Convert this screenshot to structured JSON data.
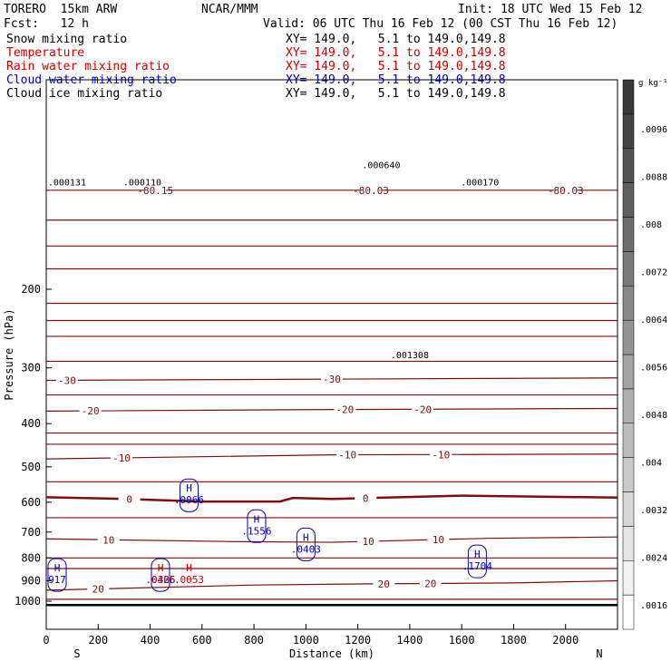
{
  "header": {
    "model": "TORERO  15km ARW",
    "org": "NCAR/MMM",
    "init": "Init: 18 UTC Wed 15 Feb 12",
    "fcst": "Fcst:   12 h",
    "valid": "Valid: 06 UTC Thu 16 Feb 12 (00 CST Thu 16 Feb 12)"
  },
  "fields": [
    {
      "name": "Snow mixing ratio",
      "xy": "XY= 149.0,   5.1 to 149.0,149.8",
      "color": "#000000"
    },
    {
      "name": "Temperature",
      "xy": "XY= 149.0,   5.1 to 149.0,149.8",
      "color": "#cc0000"
    },
    {
      "name": "Rain water mixing ratio",
      "xy": "XY= 149.0,   5.1 to 149.0,149.8",
      "color": "#cc0000"
    },
    {
      "name": "Cloud water mixing ratio",
      "xy": "XY= 149.0,   5.1 to 149.0,149.8",
      "color": "#0000bb"
    },
    {
      "name": "Cloud ice mixing ratio",
      "xy": "XY= 149.0,   5.1 to 149.0,149.8",
      "color": "#000000"
    }
  ],
  "colors": {
    "temperature": "#7a1010",
    "cloud_water": "#0000bb",
    "rain": "#cc0000",
    "ground": "#000000"
  },
  "chart_data": {
    "type": "contour",
    "xlabel": "Distance (km)",
    "ylabel": "Pressure (hPa)",
    "xlim": [
      0,
      2200
    ],
    "ylim": [
      1030,
      100
    ],
    "y_log_scale": true,
    "x_ticks": [
      0,
      200,
      400,
      600,
      800,
      1000,
      1200,
      1400,
      1600,
      1800,
      2000
    ],
    "x_tick_labels": [
      "0",
      "200",
      "400",
      "600",
      "800",
      "1000",
      "1200",
      "1400",
      "1600",
      "1800",
      "2000"
    ],
    "y_ticks": [
      200,
      300,
      400,
      500,
      600,
      700,
      800,
      900,
      1000
    ],
    "y_tick_labels": [
      "200",
      "300",
      "400",
      "500",
      "600",
      "700",
      "800",
      "900",
      "1000"
    ],
    "x_end_labels": {
      "left": "S",
      "right": "N"
    },
    "colorbar": {
      "unit": "g kg⁻¹",
      "ticks": [
        0.0016,
        0.0024,
        0.0032,
        0.004,
        0.0048,
        0.0056,
        0.0064,
        0.0072,
        0.008,
        0.0088,
        0.0096
      ],
      "tick_labels": [
        ".0016",
        ".0024",
        ".0032",
        ".004",
        ".0048",
        ".0056",
        ".0064",
        ".0072",
        ".008",
        ".0088",
        ".0096"
      ],
      "levels": 16
    },
    "temperature_contours": [
      {
        "label": "-80.15",
        "x": [
          0,
          2200
        ],
        "p": [
          120,
          120
        ],
        "labels_at": [
          {
            "x": 420,
            "text": "-80.15"
          },
          {
            "x": 2000,
            "text": "-80.03"
          },
          {
            "x": 1250,
            "text": "-80.03"
          }
        ]
      },
      {
        "level": -30,
        "label": "-30",
        "x": [
          0,
          1100,
          2200
        ],
        "p": [
          320,
          318,
          316
        ],
        "labels_at": [
          {
            "x": 80,
            "text": "-30"
          },
          {
            "x": 1100,
            "text": "-30"
          }
        ]
      },
      {
        "level": -20,
        "label": "-20",
        "x": [
          0,
          1100,
          2200
        ],
        "p": [
          375,
          372,
          370
        ],
        "labels_at": [
          {
            "x": 170,
            "text": "-20"
          },
          {
            "x": 1150,
            "text": "-20"
          },
          {
            "x": 1450,
            "text": "-20"
          }
        ]
      },
      {
        "level": -10,
        "label": "-10",
        "x": [
          0,
          1100,
          2200
        ],
        "p": [
          480,
          470,
          468
        ],
        "labels_at": [
          {
            "x": 290,
            "text": "-10"
          },
          {
            "x": 1160,
            "text": "-10"
          },
          {
            "x": 1520,
            "text": "-10"
          }
        ]
      },
      {
        "level": 0,
        "label": "0",
        "x": [
          0,
          300,
          600,
          900,
          950,
          1100,
          1600,
          2200
        ],
        "p": [
          585,
          590,
          598,
          598,
          587,
          590,
          580,
          586
        ],
        "labels_at": [
          {
            "x": 320,
            "text": "0"
          },
          {
            "x": 1230,
            "text": "0"
          }
        ]
      },
      {
        "level": 10,
        "label": "10",
        "x": [
          0,
          700,
          1100,
          1700,
          2200
        ],
        "p": [
          725,
          735,
          738,
          723,
          718
        ],
        "labels_at": [
          {
            "x": 240,
            "text": "10"
          },
          {
            "x": 1240,
            "text": "10"
          },
          {
            "x": 1510,
            "text": "10"
          }
        ]
      },
      {
        "level": 20,
        "label": "20",
        "x": [
          0,
          800,
          1200,
          1800,
          2200
        ],
        "p": [
          945,
          920,
          915,
          910,
          900
        ],
        "labels_at": [
          {
            "x": 200,
            "text": "20"
          },
          {
            "x": 1300,
            "text": "20"
          },
          {
            "x": 1480,
            "text": "20"
          }
        ]
      }
    ],
    "cloud_water_maxima": [
      {
        "x": 550,
        "p": 590,
        "value": ".0066"
      },
      {
        "x": 810,
        "p": 692,
        "value": ".1556"
      },
      {
        "x": 1000,
        "p": 760,
        "value": ".0403"
      },
      {
        "x": 1660,
        "p": 830,
        "value": ".1704"
      },
      {
        "x": 440,
        "p": 890,
        "value": ".0426"
      },
      {
        "x": 0,
        "p": 890,
        "value": "917"
      }
    ],
    "rain_maxima": [
      {
        "x": 440,
        "p": 890,
        "value": ".0365"
      },
      {
        "x": 550,
        "p": 890,
        "value": ".0053"
      }
    ],
    "cloud_ice_maxima": [
      {
        "x": 80,
        "p": 115,
        "value": ".000131"
      },
      {
        "x": 370,
        "p": 115,
        "value": ".000110"
      },
      {
        "x": 1290,
        "p": 105,
        "value": ".000640"
      },
      {
        "x": 1400,
        "p": 280,
        "value": ".001308"
      },
      {
        "x": 1670,
        "p": 115,
        "value": ".000170"
      }
    ]
  }
}
